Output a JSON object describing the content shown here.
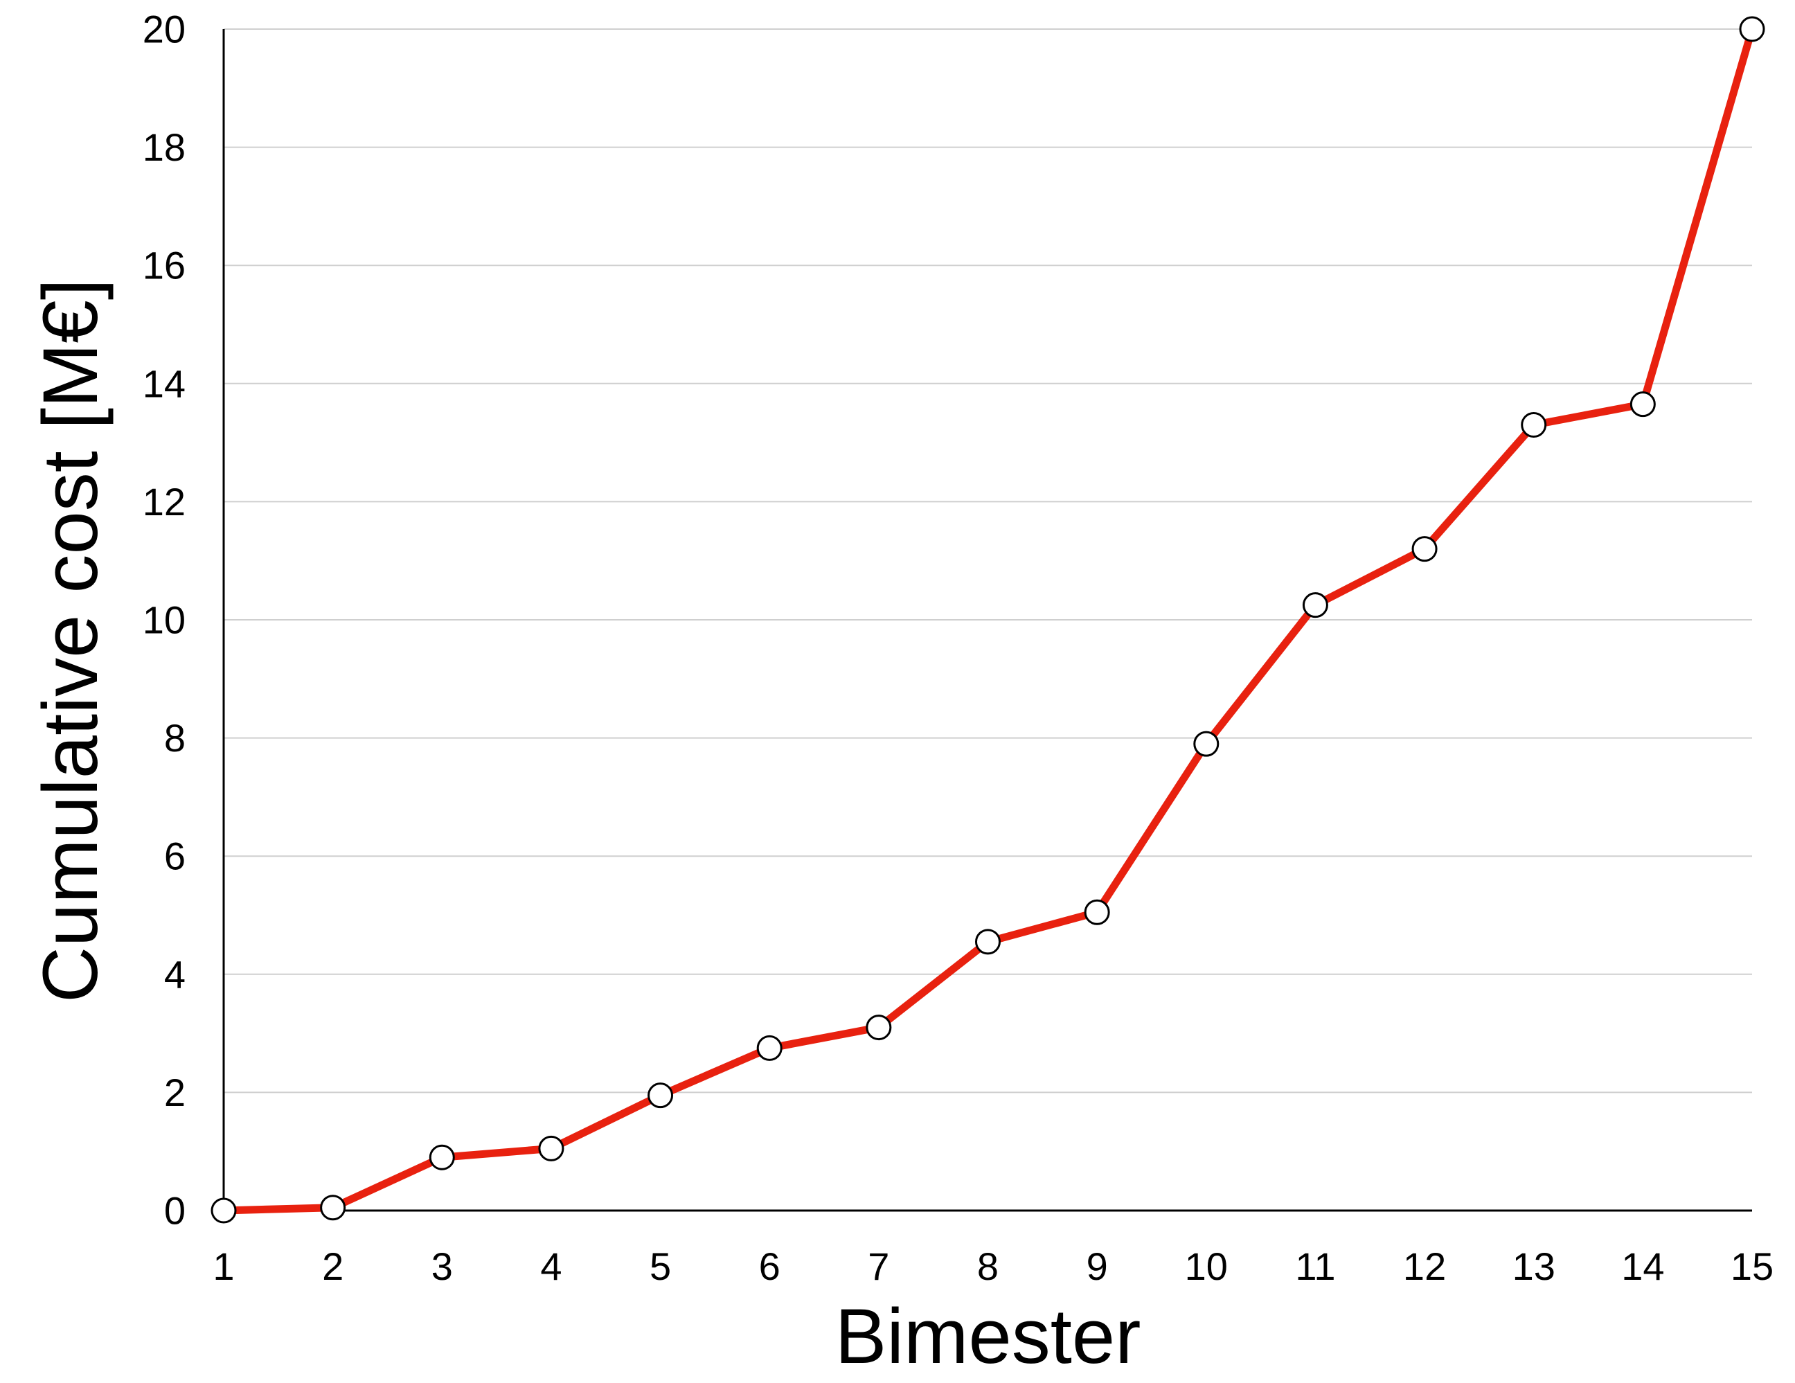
{
  "chart_data": {
    "type": "line",
    "x": [
      1,
      2,
      3,
      4,
      5,
      6,
      7,
      8,
      9,
      10,
      11,
      12,
      13,
      14,
      15
    ],
    "series": [
      {
        "values": [
          0,
          0.05,
          0.9,
          1.05,
          1.95,
          2.75,
          3.1,
          4.55,
          5.05,
          7.9,
          10.25,
          11.2,
          13.3,
          13.65,
          20
        ],
        "color": "#e8210f",
        "marker": "open-circle"
      }
    ],
    "xlabel": "Bimester",
    "ylabel": "Cumulative cost [M€]",
    "x_ticks": [
      "1",
      "2",
      "3",
      "4",
      "5",
      "6",
      "7",
      "8",
      "9",
      "10",
      "11",
      "12",
      "13",
      "14",
      "15"
    ],
    "y_ticks": [
      "0",
      "2",
      "4",
      "6",
      "8",
      "10",
      "12",
      "14",
      "16",
      "18",
      "20"
    ],
    "xlim": [
      1,
      15
    ],
    "ylim": [
      0,
      20
    ],
    "grid": "horizontal",
    "legend": "none"
  }
}
